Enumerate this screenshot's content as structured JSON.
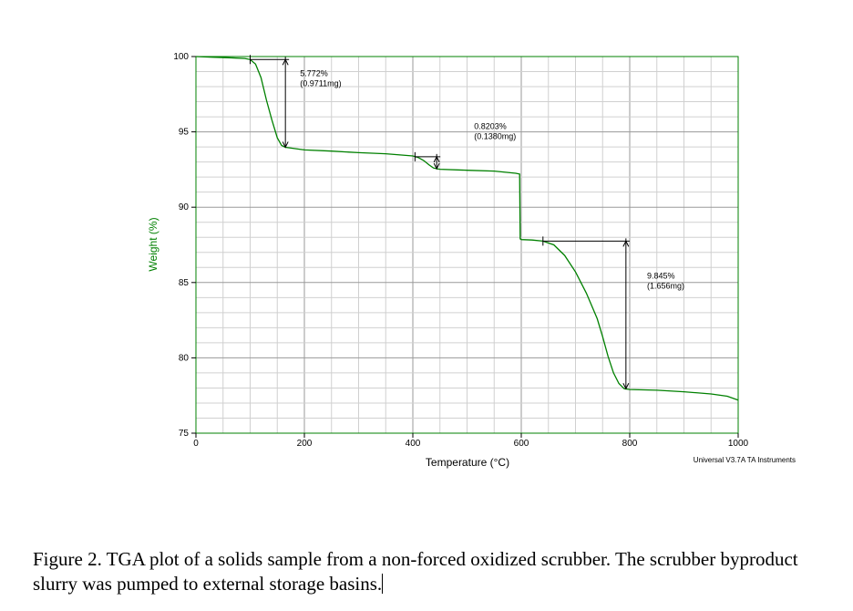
{
  "chart_data": {
    "type": "line",
    "xlabel": "Temperature (°C)",
    "ylabel": "Weight (%)",
    "xlim": [
      0,
      1000
    ],
    "ylim": [
      75,
      100
    ],
    "x_major_ticks": [
      0,
      200,
      400,
      600,
      800,
      1000
    ],
    "y_major_ticks": [
      75,
      80,
      85,
      90,
      95,
      100
    ],
    "x_minor_step": 50,
    "y_minor_step": 1,
    "grid": true,
    "line_color": "#008000",
    "axis_color": "#008000",
    "series": [
      {
        "x": [
          0,
          30,
          60,
          90,
          100,
          110,
          120,
          130,
          140,
          150,
          158,
          165,
          200,
          250,
          300,
          350,
          400,
          410,
          420,
          430,
          438,
          445,
          450,
          500,
          550,
          590,
          597,
          598,
          600,
          620,
          640,
          660,
          680,
          700,
          720,
          740,
          750,
          760,
          770,
          780,
          790,
          800,
          850,
          900,
          950,
          980,
          1000
        ],
        "y": [
          100,
          99.96,
          99.92,
          99.87,
          99.8,
          99.5,
          98.6,
          97.1,
          95.8,
          94.6,
          94.1,
          93.98,
          93.8,
          93.72,
          93.62,
          93.55,
          93.4,
          93.3,
          93.1,
          92.8,
          92.6,
          92.55,
          92.52,
          92.45,
          92.4,
          92.25,
          92.2,
          87.9,
          87.85,
          87.82,
          87.75,
          87.5,
          86.8,
          85.7,
          84.3,
          82.6,
          81.4,
          80.1,
          79.0,
          78.3,
          77.95,
          77.9,
          77.85,
          77.75,
          77.6,
          77.45,
          77.2
        ]
      }
    ],
    "annotations": [
      {
        "pct": "5.772%",
        "mass": "(0.9711mg)",
        "x_start": 100,
        "x_arrow": 165,
        "y_top": 99.8,
        "y_bottom": 93.98,
        "label_x": 192,
        "label_y": 98.7
      },
      {
        "pct": "0.8203%",
        "mass": "(0.1380mg)",
        "x_start": 404,
        "x_arrow": 444,
        "y_top": 93.35,
        "y_bottom": 92.55,
        "label_x": 513,
        "label_y": 95.2
      },
      {
        "pct": "9.845%",
        "mass": "(1.656mg)",
        "x_start": 640,
        "x_arrow": 793,
        "y_top": 87.75,
        "y_bottom": 77.95,
        "label_x": 832,
        "label_y": 85.25
      }
    ],
    "footer": "Universal V3.7A TA Instruments"
  },
  "caption": "Figure 2.  TGA plot of a solids sample from a non-forced oxidized scrubber.  The scrubber byproduct slurry was pumped to external storage basins."
}
